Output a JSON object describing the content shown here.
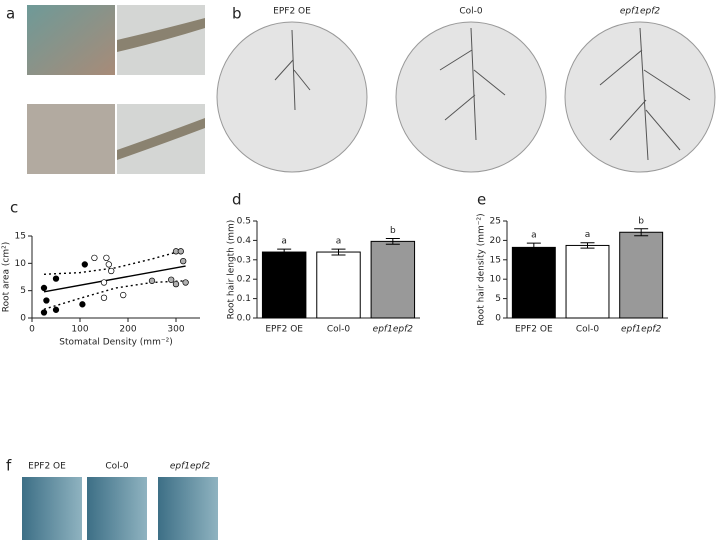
{
  "photo_panels": [
    {
      "label": "a"
    },
    {
      "label": "b",
      "captions": [
        "EPF2 OE",
        "Col-0",
        "epf1epf2"
      ]
    },
    {
      "label": "f",
      "captions": [
        "EPF2 OE",
        "Col-0",
        "epf1epf2"
      ]
    }
  ],
  "chart_data": [
    {
      "type": "scatter",
      "panel": "c",
      "xlabel": "Stomatal Density (mm⁻²)",
      "ylabel": "Root area (cm²)",
      "xlim": [
        0,
        350
      ],
      "xticks": [
        0,
        100,
        200,
        300
      ],
      "ylim": [
        0,
        15
      ],
      "yticks": [
        0,
        5,
        10,
        15
      ],
      "series": [
        {
          "color": "#000000",
          "x": [
            25,
            30,
            25,
            50,
            50,
            105,
            110
          ],
          "values": [
            5.5,
            3.2,
            1,
            1.5,
            7.2,
            2.5,
            9.8
          ]
        },
        {
          "color": "#ffffff",
          "x": [
            130,
            155,
            160,
            165,
            150,
            150,
            190
          ],
          "values": [
            11,
            11,
            9.8,
            8.6,
            6.5,
            3.7,
            4.2
          ]
        },
        {
          "color": "#b0b0b0",
          "x": [
            250,
            290,
            300,
            300,
            310,
            315,
            320
          ],
          "values": [
            6.8,
            7,
            6.2,
            12.2,
            12.2,
            10.4,
            6.5
          ]
        }
      ],
      "fit": {
        "x": [
          25,
          320
        ],
        "values": [
          4.8,
          9.5
        ]
      },
      "band_x": [
        25,
        100,
        175,
        250,
        320
      ],
      "band_upper": [
        8,
        8.3,
        9.2,
        10.8,
        12.5
      ],
      "band_lower": [
        1.6,
        3.6,
        5.5,
        6.5,
        6.8
      ]
    },
    {
      "type": "bar",
      "panel": "d",
      "ylabel": "Root hair length (mm)",
      "categories": [
        "EPF2 OE",
        "Col-0",
        "epf1epf2"
      ],
      "values": [
        0.34,
        0.34,
        0.395
      ],
      "errors": [
        0.015,
        0.015,
        0.015
      ],
      "colors": [
        "#000000",
        "#ffffff",
        "#999999"
      ],
      "annotations": [
        "a",
        "a",
        "b"
      ],
      "ylim": [
        0,
        0.5
      ],
      "yticks": [
        {
          "value": 0,
          "label": "0.0"
        },
        0.1,
        0.2,
        0.3,
        0.4,
        0.5
      ]
    },
    {
      "type": "bar",
      "panel": "e",
      "ylabel": "Root hair density (mm⁻²)",
      "categories": [
        "EPF2 OE",
        "Col-0",
        "epf1epf2"
      ],
      "values": [
        18.2,
        18.7,
        22.1
      ],
      "errors": [
        1.1,
        0.7,
        0.9
      ],
      "colors": [
        "#000000",
        "#ffffff",
        "#999999"
      ],
      "annotations": [
        "a",
        "a",
        "b"
      ],
      "ylim": [
        0,
        25
      ],
      "yticks": [
        0,
        5,
        10,
        15,
        20,
        25
      ]
    }
  ]
}
